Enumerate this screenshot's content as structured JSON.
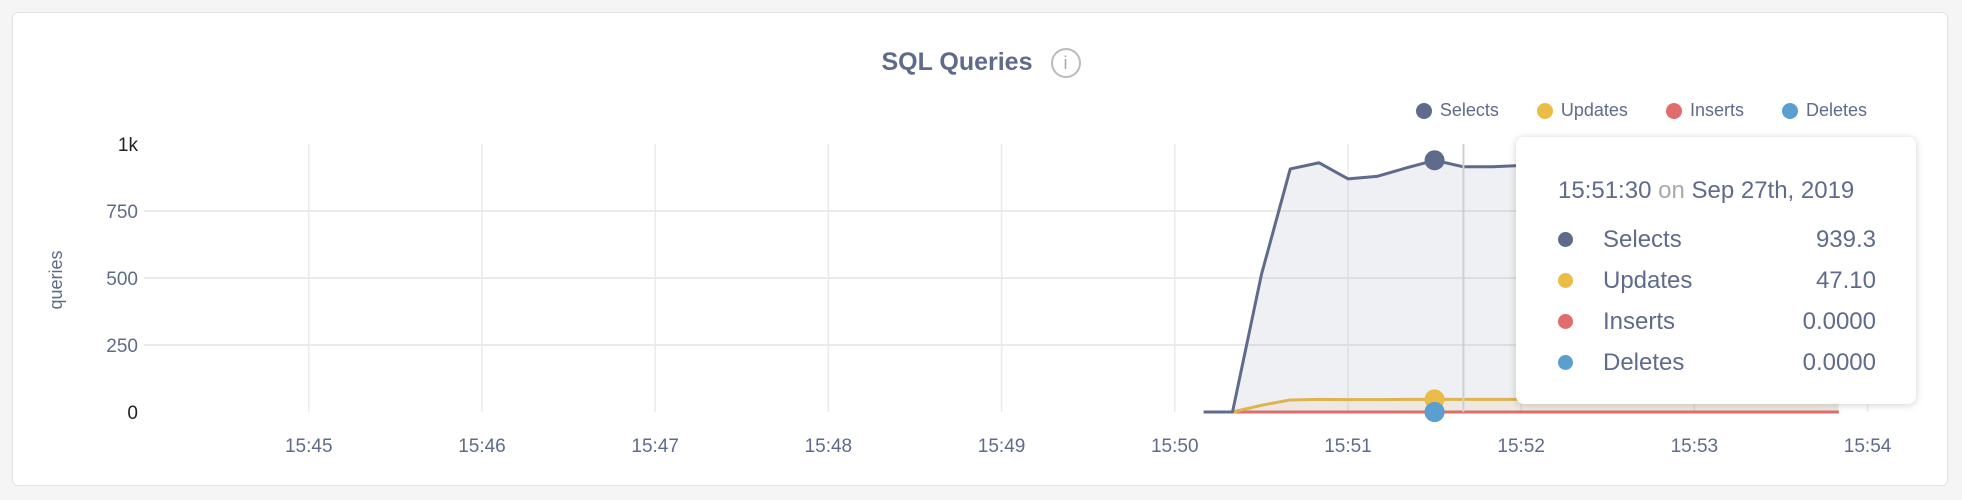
{
  "chart_data": {
    "type": "area",
    "title": "SQL Queries",
    "ylabel": "queries",
    "xlabel": "",
    "ylim": [
      0,
      1000
    ],
    "yticks": [
      "0",
      "250",
      "500",
      "750",
      "1k"
    ],
    "xticks": [
      "15:45",
      "15:46",
      "15:47",
      "15:48",
      "15:49",
      "15:50",
      "15:51",
      "15:52",
      "15:53",
      "15:54"
    ],
    "xrange": [
      "15:44:05",
      "15:54:05"
    ],
    "grid": true,
    "legend_position": "top-right",
    "x": [
      "15:50:10",
      "15:50:20",
      "15:50:30",
      "15:50:40",
      "15:50:50",
      "15:51:00",
      "15:51:10",
      "15:51:20",
      "15:51:30",
      "15:51:40",
      "15:51:50",
      "15:52:00",
      "15:52:10",
      "15:52:20",
      "15:52:30",
      "15:52:40",
      "15:52:50",
      "15:53:00",
      "15:53:10",
      "15:53:20",
      "15:53:30",
      "15:53:40",
      "15:53:50"
    ],
    "series": [
      {
        "name": "Selects",
        "color": "#5f6b8a",
        "values": [
          0,
          0,
          512,
          907,
          930,
          870,
          879,
          910,
          939.3,
          915,
          915,
          920,
          918,
          920,
          920,
          918,
          920,
          920,
          918,
          920,
          920,
          918,
          920
        ]
      },
      {
        "name": "Updates",
        "color": "#ebbd47",
        "values": [
          0,
          0,
          25,
          45,
          47,
          46,
          46,
          47,
          47.1,
          47,
          47,
          47,
          47,
          47,
          47,
          47,
          47,
          47,
          47,
          47,
          47,
          47,
          47
        ]
      },
      {
        "name": "Inserts",
        "color": "#e06c6c",
        "values": [
          0,
          0,
          0,
          0,
          0,
          0,
          0,
          0,
          0,
          0,
          0,
          0,
          0,
          0,
          0,
          0,
          0,
          0,
          0,
          0,
          0,
          0,
          0
        ]
      },
      {
        "name": "Deletes",
        "color": "#5b9fd0",
        "values": [
          0,
          0,
          0,
          0,
          0,
          0,
          0,
          0,
          0,
          0,
          0,
          0,
          0,
          0,
          0,
          0,
          0,
          0,
          0,
          0,
          0,
          0,
          0
        ]
      }
    ],
    "highlight_x": "15:51:30"
  },
  "title": "SQL Queries",
  "info_icon": "i",
  "tooltip": {
    "time": "15:51:30",
    "on": "on",
    "date": "Sep 27th, 2019",
    "rows": [
      {
        "name": "Selects",
        "value": "939.3",
        "color": "#5f6b8a"
      },
      {
        "name": "Updates",
        "value": "47.10",
        "color": "#ebbd47"
      },
      {
        "name": "Inserts",
        "value": "0.0000",
        "color": "#e06c6c"
      },
      {
        "name": "Deletes",
        "value": "0.0000",
        "color": "#5b9fd0"
      }
    ]
  }
}
